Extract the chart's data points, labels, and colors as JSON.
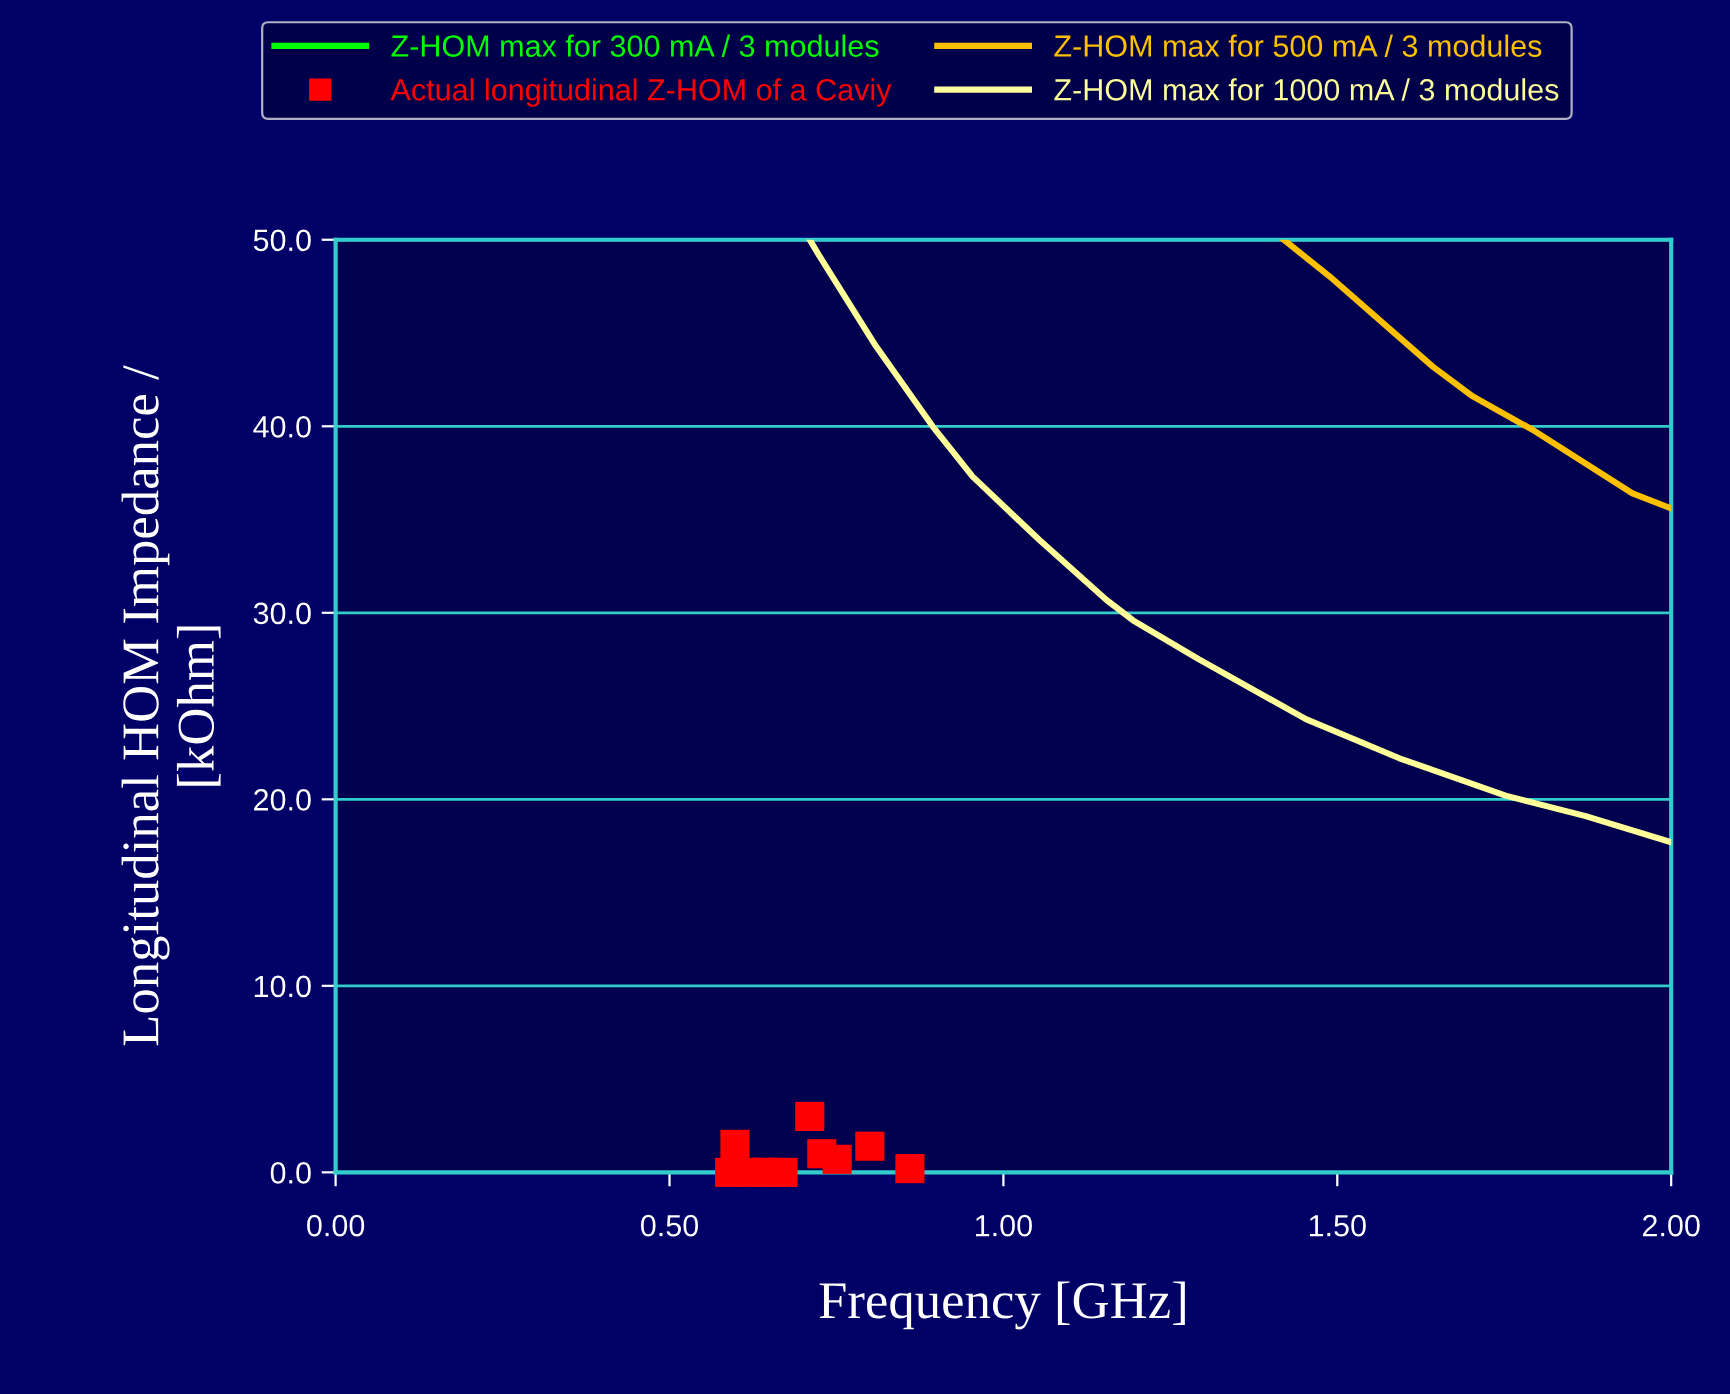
{
  "chart_data": {
    "type": "line",
    "xlabel": "Frequency [GHz]",
    "ylabel": "Longitudinal HOM Impedance /\n[kOhm]",
    "xlim": [
      0,
      2
    ],
    "ylim": [
      0,
      50
    ],
    "xticks": [
      {
        "value": 0,
        "label": "0.00"
      },
      {
        "value": 0.5,
        "label": "0.50"
      },
      {
        "value": 1,
        "label": "1.00"
      },
      {
        "value": 1.5,
        "label": "1.50"
      },
      {
        "value": 2,
        "label": "2.00"
      }
    ],
    "yticks": [
      {
        "value": 0,
        "label": "0.0"
      },
      {
        "value": 10,
        "label": "10.0"
      },
      {
        "value": 20,
        "label": "20.0"
      },
      {
        "value": 30,
        "label": "30.0"
      },
      {
        "value": 40,
        "label": "40.0"
      },
      {
        "value": 50,
        "label": "50.0"
      }
    ],
    "grid": "y",
    "legend": "top",
    "line_style": "solid",
    "series": [
      {
        "name": "Z-HOM max for 300 mA / 3 modules",
        "color": "#00ff00"
      },
      {
        "name": "Actual longitudinal Z-HOM of a Caviy",
        "color": "#ff0000",
        "type": "scatter",
        "marker": "square",
        "x": [
          0.59,
          0.598,
          0.62,
          0.645,
          0.67,
          0.71,
          0.728,
          0.751,
          0.8,
          0.86
        ],
        "values": [
          0,
          1.5,
          0,
          0,
          0,
          3.0,
          1.0,
          0.7,
          1.4,
          0.2
        ]
      },
      {
        "name": "Z-HOM max for 500 mA / 3 modules",
        "color": "#ffc000",
        "x": [
          1.42,
          1.493,
          1.643,
          1.703,
          1.793,
          1.942,
          2.0
        ],
        "values": [
          50,
          47.9,
          43.2,
          41.6,
          39.8,
          36.4,
          35.6
        ]
      },
      {
        "name": "Z-HOM max for 1000 mA / 3 modules",
        "color": "#ffff99",
        "x": [
          0.71,
          0.725,
          0.809,
          0.894,
          0.954,
          1.054,
          1.154,
          1.194,
          1.293,
          1.453,
          1.593,
          1.752,
          1.872,
          2.0
        ],
        "values": [
          50,
          49.1,
          44.3,
          40.0,
          37.3,
          33.9,
          30.7,
          29.6,
          27.5,
          24.3,
          22.2,
          20.2,
          19.1,
          17.7
        ]
      }
    ]
  }
}
